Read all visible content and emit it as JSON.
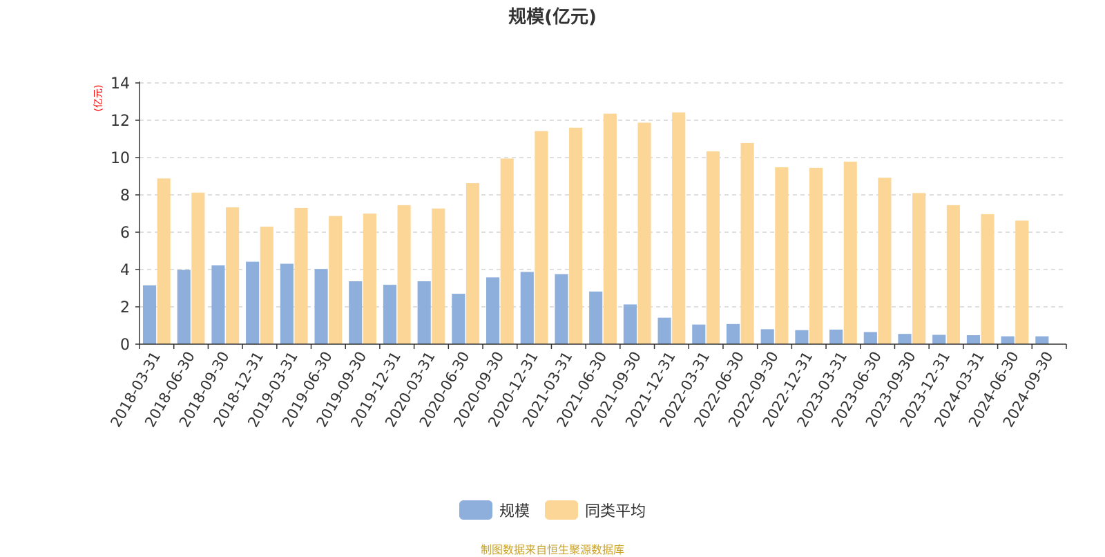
{
  "chart_data": {
    "type": "bar",
    "title": "规模(亿元)",
    "ylabel": "(亿元)",
    "xlabel": "",
    "ylim": [
      0,
      14
    ],
    "yticks": [
      0,
      2,
      4,
      6,
      8,
      10,
      12,
      14
    ],
    "grid": true,
    "legend_position": "bottom",
    "categories": [
      "2018-03-31",
      "2018-06-30",
      "2018-09-30",
      "2018-12-31",
      "2019-03-31",
      "2019-06-30",
      "2019-09-30",
      "2019-12-31",
      "2020-03-31",
      "2020-06-30",
      "2020-09-30",
      "2020-12-31",
      "2021-03-31",
      "2021-06-30",
      "2021-09-30",
      "2021-12-31",
      "2022-03-31",
      "2022-06-30",
      "2022-09-30",
      "2022-12-31",
      "2023-03-31",
      "2023-06-30",
      "2023-09-30",
      "2023-12-31",
      "2024-03-31",
      "2024-06-30",
      "2024-09-30"
    ],
    "series": [
      {
        "name": "规模",
        "color": "#8eaedc",
        "values": [
          3.15,
          3.98,
          4.22,
          4.42,
          4.31,
          4.03,
          3.37,
          3.18,
          3.37,
          2.7,
          3.58,
          3.87,
          3.75,
          2.82,
          2.13,
          1.42,
          1.05,
          1.08,
          0.8,
          0.75,
          0.78,
          0.65,
          0.55,
          0.5,
          0.48,
          0.42,
          0.42
        ]
      },
      {
        "name": "同类平均",
        "color": "#fcd697",
        "values": [
          8.88,
          8.12,
          7.33,
          6.3,
          7.3,
          6.87,
          7.0,
          7.45,
          7.27,
          8.63,
          9.95,
          11.42,
          11.6,
          12.35,
          11.87,
          12.42,
          10.33,
          10.78,
          9.48,
          9.45,
          9.78,
          8.92,
          8.1,
          7.45,
          6.97,
          6.62,
          null
        ]
      }
    ]
  },
  "source_note": "制图数据来自恒生聚源数据库"
}
